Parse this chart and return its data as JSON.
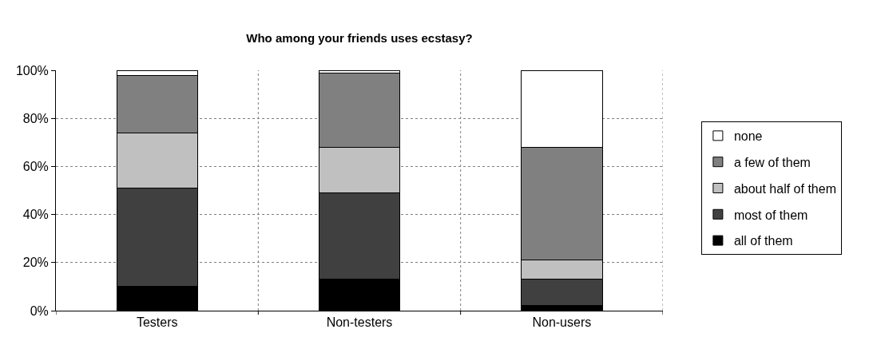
{
  "chart_data": {
    "type": "bar",
    "title": "Who among your friends uses ecstasy?",
    "categories": [
      "Testers",
      "Non-testers",
      "Non-users"
    ],
    "stacked": true,
    "series": [
      {
        "name": "all of them",
        "color": "#000000",
        "values": [
          10,
          13,
          2
        ]
      },
      {
        "name": "most of them",
        "color": "#404040",
        "values": [
          41,
          36,
          11
        ]
      },
      {
        "name": "about half of them",
        "color": "#c0c0c0",
        "values": [
          23,
          19,
          8
        ]
      },
      {
        "name": "a few of them",
        "color": "#808080",
        "values": [
          24,
          31,
          47
        ]
      },
      {
        "name": "none",
        "color": "#ffffff",
        "values": [
          2,
          1,
          32
        ]
      }
    ],
    "ylim": [
      0,
      100
    ],
    "yticks": [
      {
        "value": 0,
        "label": "0%"
      },
      {
        "value": 20,
        "label": "20%"
      },
      {
        "value": 40,
        "label": "40%"
      },
      {
        "value": 60,
        "label": "60%"
      },
      {
        "value": 80,
        "label": "80%"
      },
      {
        "value": 100,
        "label": "100%"
      }
    ],
    "grid": true,
    "legend": "right"
  }
}
